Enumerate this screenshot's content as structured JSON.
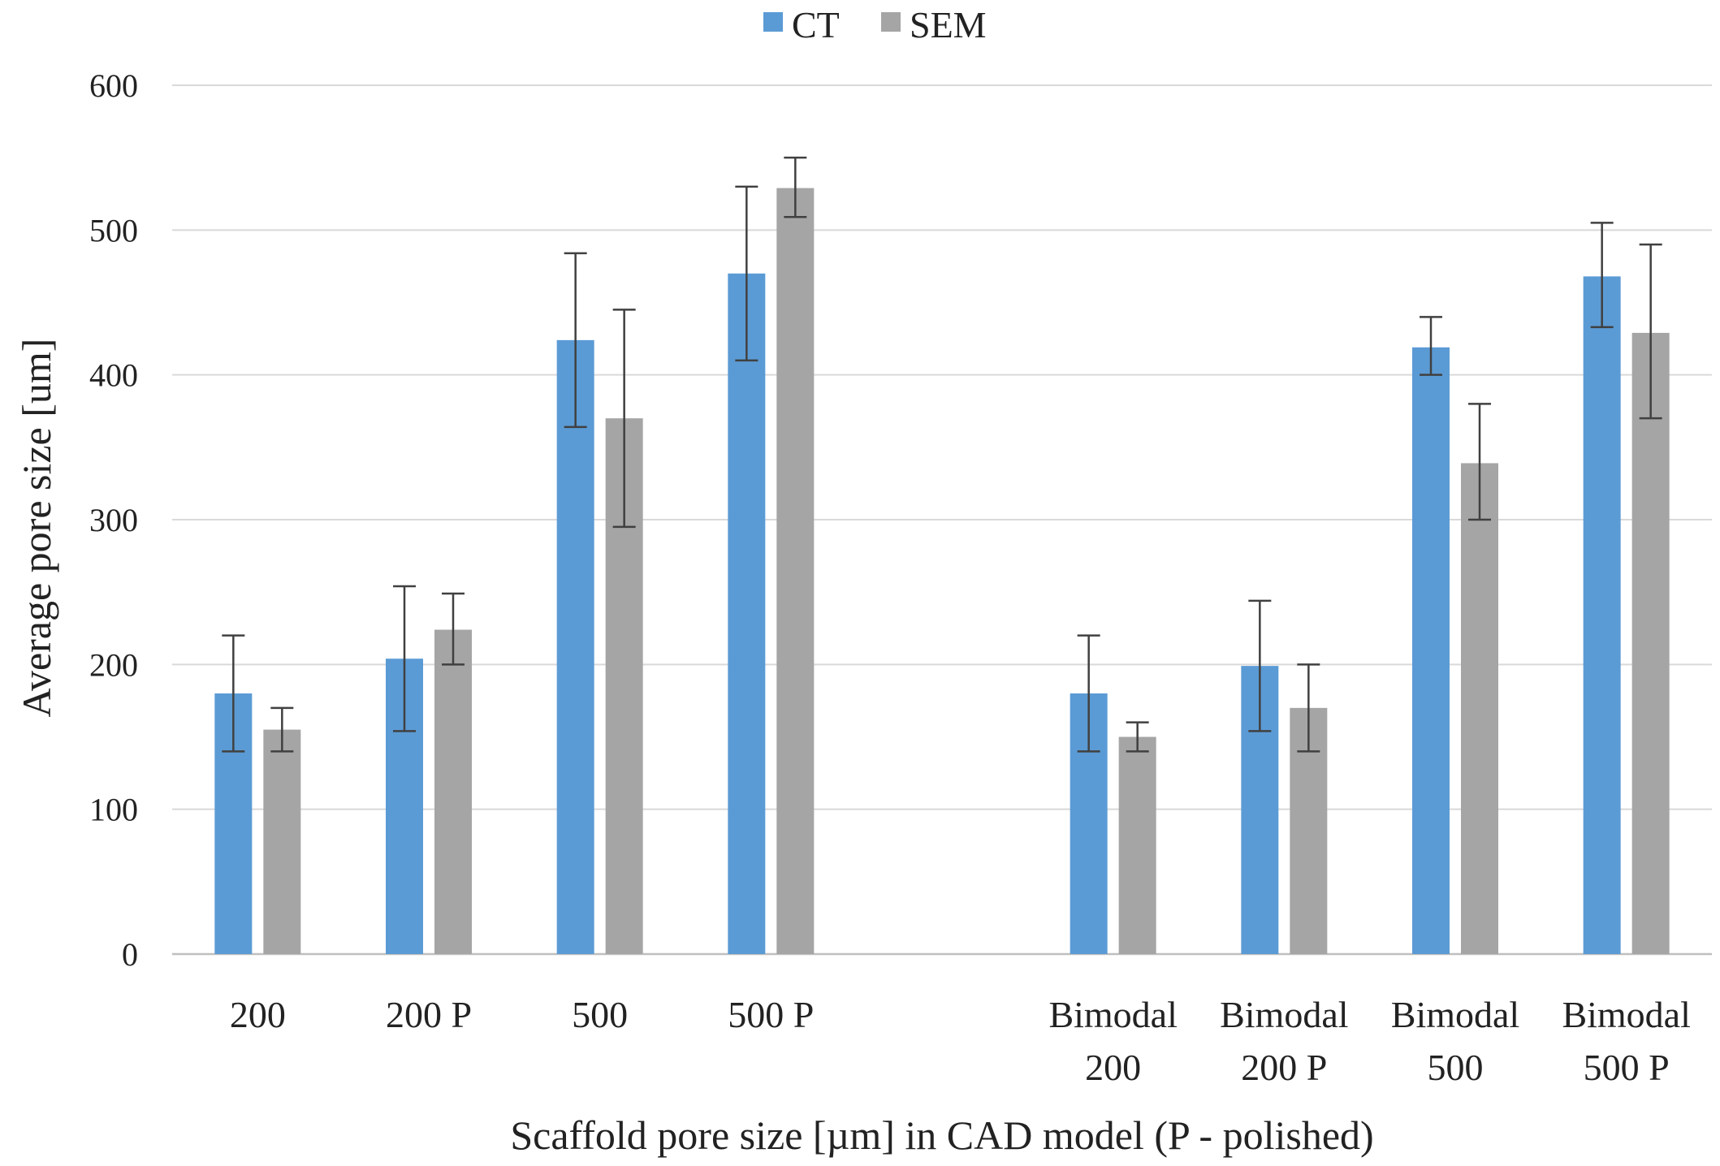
{
  "chart_data": {
    "type": "bar",
    "title": "",
    "xlabel": "Scaffold pore size [µm] in CAD model (P - polished)",
    "ylabel": "Average pore size [um]",
    "ylim": [
      0,
      600
    ],
    "yticks": [
      0,
      100,
      200,
      300,
      400,
      500,
      600
    ],
    "grid": true,
    "legend_position": "top-center",
    "categories": [
      [
        "200"
      ],
      [
        "200 P"
      ],
      [
        "500"
      ],
      [
        "500 P"
      ],
      [
        ""
      ],
      [
        "Bimodal",
        "200"
      ],
      [
        "Bimodal",
        "200 P"
      ],
      [
        "Bimodal",
        "500"
      ],
      [
        "Bimodal",
        "500 P"
      ]
    ],
    "series": [
      {
        "name": "CT",
        "color": "#5b9bd5",
        "values": [
          180,
          204,
          424,
          470,
          null,
          180,
          199,
          419,
          468
        ],
        "error_low": [
          140,
          154,
          364,
          410,
          null,
          140,
          154,
          400,
          433
        ],
        "error_high": [
          220,
          254,
          484,
          530,
          null,
          220,
          244,
          440,
          505
        ]
      },
      {
        "name": "SEM",
        "color": "#a5a5a5",
        "values": [
          155,
          224,
          370,
          529,
          null,
          150,
          170,
          339,
          429
        ],
        "error_low": [
          140,
          200,
          295,
          509,
          null,
          140,
          140,
          300,
          370
        ],
        "error_high": [
          170,
          249,
          445,
          550,
          null,
          160,
          200,
          380,
          490
        ]
      }
    ]
  }
}
